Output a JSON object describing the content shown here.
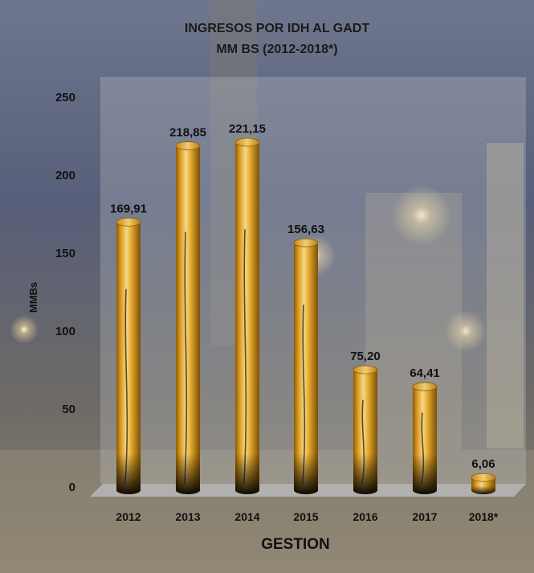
{
  "chart_data": {
    "type": "bar",
    "title": "INGRESOS POR IDH AL GADT",
    "subtitle": "MM BS (2012-2018*)",
    "xlabel": "GESTION",
    "ylabel": "MMBs",
    "categories": [
      "2012",
      "2013",
      "2014",
      "2015",
      "2016",
      "2017",
      "2018*"
    ],
    "values": [
      169.91,
      218.85,
      221.15,
      156.63,
      75.2,
      64.41,
      6.06
    ],
    "value_labels": [
      "169,91",
      "218,85",
      "221,15",
      "156,63",
      "75,20",
      "64,41",
      "6,06"
    ],
    "yticks": [
      "0",
      "50",
      "100",
      "150",
      "200",
      "250"
    ],
    "ylim": [
      0,
      250
    ],
    "grid": false,
    "legend": "none",
    "bar_shape": "cylinder",
    "colors": {
      "bar": "#d99a1e",
      "bar_highlight": "#f5d27a",
      "bar_shadow": "#1a1206",
      "background": "#4a5470"
    }
  }
}
